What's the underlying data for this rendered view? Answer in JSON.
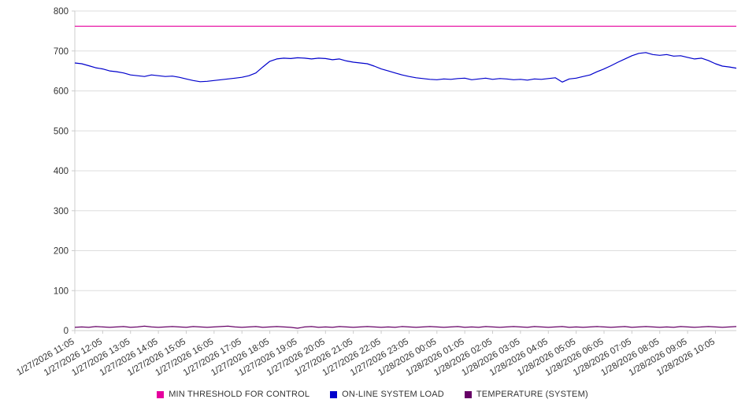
{
  "chart_data": {
    "type": "line",
    "title": "",
    "xlabel": "",
    "ylabel": "",
    "ylim": [
      0,
      800
    ],
    "y_ticks": [
      0,
      100,
      200,
      300,
      400,
      500,
      600,
      700,
      800
    ],
    "grid": "horizontal",
    "legend_position": "bottom",
    "points_per_label": 4,
    "x_labels": [
      "1/27/2026 11:05",
      "1/27/2026 12:05",
      "1/27/2026 13:05",
      "1/27/2026 14:05",
      "1/27/2026 15:05",
      "1/27/2026 16:05",
      "1/27/2026 17:05",
      "1/27/2026 18:05",
      "1/27/2026 19:05",
      "1/27/2026 20:05",
      "1/27/2026 21:05",
      "1/27/2026 22:05",
      "1/27/2026 23:05",
      "1/28/2026 00:05",
      "1/28/2026 01:05",
      "1/28/2026 02:05",
      "1/28/2026 03:05",
      "1/28/2026 04:05",
      "1/28/2026 05:05",
      "1/28/2026 06:05",
      "1/28/2026 07:05",
      "1/28/2026 08:05",
      "1/28/2026 09:05",
      "1/28/2026 10:05"
    ],
    "series": [
      {
        "name": "MIN THRESHOLD FOR CONTROL",
        "color": "#e6009e",
        "constant": 762
      },
      {
        "name": "ON-LINE SYSTEM LOAD",
        "color": "#0000cc",
        "values": [
          670,
          668,
          663,
          658,
          655,
          650,
          648,
          645,
          640,
          638,
          636,
          640,
          638,
          636,
          637,
          634,
          630,
          626,
          623,
          624,
          626,
          628,
          630,
          632,
          634,
          638,
          645,
          660,
          674,
          680,
          682,
          681,
          683,
          682,
          680,
          682,
          681,
          678,
          680,
          675,
          672,
          670,
          668,
          662,
          655,
          650,
          645,
          640,
          636,
          633,
          631,
          629,
          628,
          630,
          629,
          631,
          632,
          628,
          630,
          632,
          629,
          631,
          630,
          628,
          629,
          627,
          630,
          629,
          631,
          633,
          622,
          630,
          632,
          636,
          640,
          648,
          655,
          663,
          672,
          680,
          688,
          694,
          696,
          691,
          689,
          691,
          687,
          688,
          684,
          680,
          682,
          676,
          668,
          662,
          660,
          657
        ]
      },
      {
        "name": "TEMPERATURE (SYSTEM)",
        "color": "#660066",
        "values": [
          8,
          9,
          8,
          10,
          9,
          8,
          9,
          10,
          8,
          9,
          11,
          9,
          8,
          9,
          10,
          9,
          8,
          10,
          9,
          8,
          9,
          10,
          11,
          9,
          8,
          9,
          10,
          8,
          9,
          10,
          9,
          8,
          6,
          9,
          10,
          8,
          9,
          8,
          10,
          9,
          8,
          9,
          10,
          9,
          8,
          9,
          8,
          10,
          9,
          8,
          9,
          10,
          9,
          8,
          9,
          10,
          8,
          9,
          8,
          10,
          9,
          8,
          9,
          10,
          9,
          8,
          10,
          9,
          8,
          9,
          10,
          8,
          9,
          8,
          9,
          10,
          9,
          8,
          9,
          10,
          8,
          9,
          10,
          9,
          8,
          9,
          8,
          10,
          9,
          8,
          9,
          10,
          9,
          8,
          9,
          10
        ]
      }
    ],
    "colors": {
      "grid": "#dddddd",
      "axis": "#cccccc",
      "tick_text": "#333333"
    }
  }
}
